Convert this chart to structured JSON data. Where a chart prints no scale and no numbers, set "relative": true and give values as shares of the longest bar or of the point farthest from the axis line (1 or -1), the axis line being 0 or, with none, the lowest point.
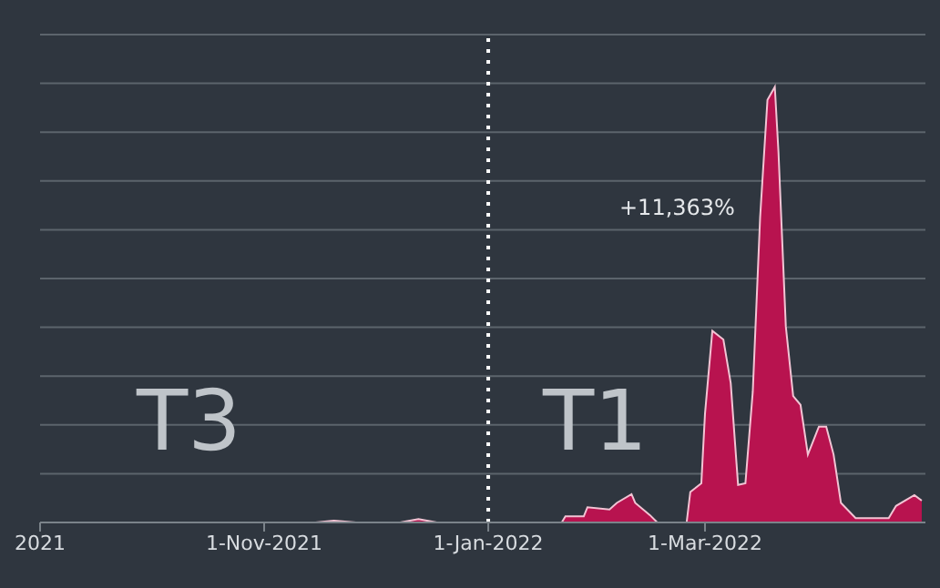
{
  "chart_data": {
    "type": "area",
    "relative": true,
    "color": "#b8134f",
    "x": [
      "2021-09-01",
      "2021-11-15",
      "2021-11-20",
      "2021-11-26",
      "2021-12-08",
      "2021-12-13",
      "2021-12-18",
      "2022-01-21",
      "2022-01-22",
      "2022-01-27",
      "2022-01-28",
      "2022-02-03",
      "2022-02-05",
      "2022-02-09",
      "2022-02-10",
      "2022-02-14",
      "2022-02-16",
      "2022-02-24",
      "2022-02-25",
      "2022-02-28",
      "2022-03-01",
      "2022-03-03",
      "2022-03-06",
      "2022-03-08",
      "2022-03-10",
      "2022-03-12",
      "2022-03-14",
      "2022-03-16",
      "2022-03-18",
      "2022-03-20",
      "2022-03-21",
      "2022-03-23",
      "2022-03-25",
      "2022-03-27",
      "2022-03-29",
      "2022-04-01",
      "2022-04-03",
      "2022-04-05",
      "2022-04-07",
      "2022-04-11",
      "2022-04-20",
      "2022-04-22",
      "2022-04-27",
      "2022-04-29"
    ],
    "values": [
      0,
      0,
      0.004,
      0,
      0,
      0.008,
      0,
      0,
      0.014,
      0.014,
      0.035,
      0.03,
      0.045,
      0.065,
      0.045,
      0.017,
      0,
      0,
      0.07,
      0.09,
      0.25,
      0.44,
      0.42,
      0.32,
      0.086,
      0.09,
      0.3,
      0.7,
      0.97,
      1,
      0.85,
      0.45,
      0.29,
      0.27,
      0.156,
      0.22,
      0.22,
      0.156,
      0.045,
      0.01,
      0.01,
      0.038,
      0.063,
      0.05
    ],
    "xlim": [
      "2021-09-01",
      "2022-04-30"
    ],
    "xticks": [
      {
        "value": "2021-09-01",
        "label": "2021"
      },
      {
        "value": "2021-11-01",
        "label": "1-Nov-2021"
      },
      {
        "value": "2022-01-01",
        "label": "1-Jan-2022"
      },
      {
        "value": "2022-03-01",
        "label": "1-Mar-2022"
      }
    ],
    "ref_lines": [
      {
        "axis": "x",
        "value": "2022-01-01",
        "color": "#ffffff",
        "line_style": "dotted"
      }
    ],
    "annotations": [
      "T3",
      "T1",
      "+11,363%"
    ],
    "grid": "y"
  }
}
